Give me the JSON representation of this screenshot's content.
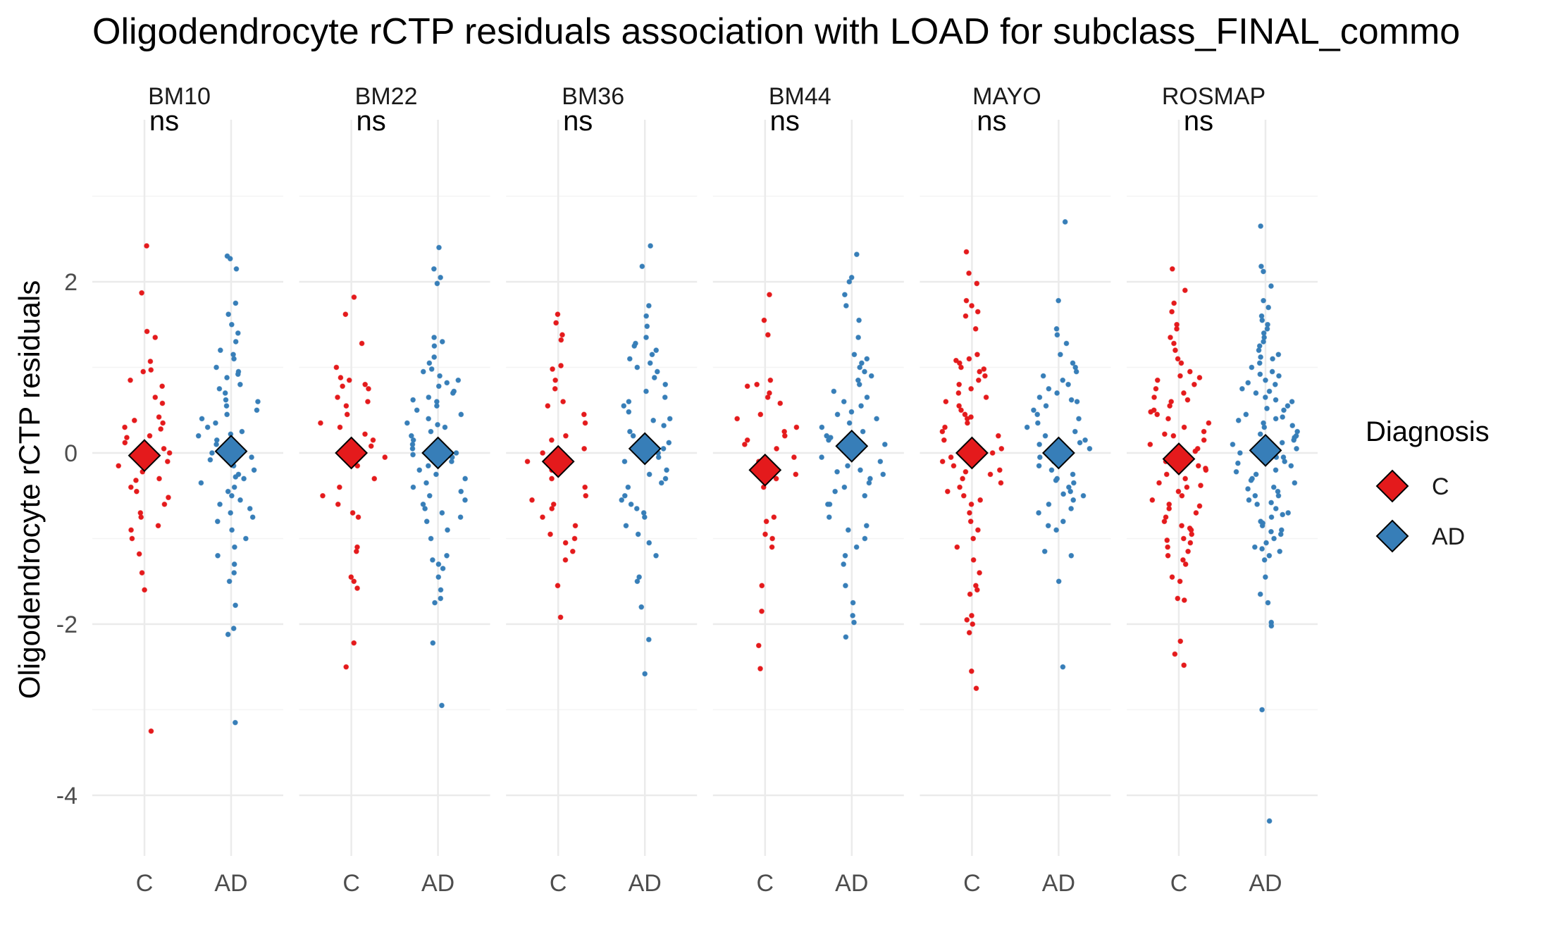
{
  "chart_data": {
    "type": "scatter",
    "title": "Oligodendrocyte rCTP residuals association with LOAD for subclass_FINAL_commo",
    "ylabel": "Oligodendrocyte rCTP residuals",
    "xlabel": "",
    "ylim": [
      -4.7,
      3.9
    ],
    "yticks": [
      -4,
      -2,
      0,
      2
    ],
    "grid": true,
    "categories": [
      "C",
      "AD"
    ],
    "legend": {
      "title": "Diagnosis",
      "position": "right",
      "entries": [
        "C",
        "AD"
      ]
    },
    "colors": {
      "C": "#e41a1c",
      "AD": "#377eb8",
      "grid_major": "#ebebeb",
      "grid_minor": "#f4f4f4"
    },
    "panels": [
      {
        "name": "BM10",
        "significance": "ns",
        "means": {
          "C": -0.03,
          "AD": 0.02
        },
        "points": {
          "C": [
            2.42,
            1.87,
            1.42,
            1.35,
            1.07,
            0.97,
            0.85,
            0.78,
            0.65,
            0.58,
            0.42,
            0.38,
            0.35,
            0.3,
            0.2,
            0.18,
            0.12,
            0.05,
            0.0,
            -0.1,
            -0.15,
            -0.22,
            -0.3,
            -0.32,
            -0.4,
            -0.45,
            -0.52,
            -0.6,
            -0.7,
            -0.75,
            -0.85,
            -0.9,
            -1.0,
            -1.18,
            -1.4,
            -1.6,
            -3.25,
            0.95,
            0.28
          ],
          "AD": [
            2.3,
            2.27,
            2.15,
            1.75,
            1.62,
            1.5,
            1.4,
            1.3,
            1.2,
            1.1,
            1.0,
            0.95,
            0.88,
            0.8,
            0.75,
            0.7,
            0.62,
            0.55,
            0.5,
            0.45,
            0.4,
            0.35,
            0.3,
            0.25,
            0.2,
            0.15,
            0.1,
            0.05,
            0.0,
            -0.05,
            -0.1,
            -0.15,
            -0.2,
            -0.25,
            -0.3,
            -0.35,
            -0.4,
            -0.45,
            -0.5,
            -0.55,
            -0.6,
            -0.7,
            -0.75,
            -0.8,
            -0.9,
            -1.0,
            -1.1,
            -1.2,
            -1.3,
            -1.4,
            -1.5,
            -1.78,
            -2.05,
            -2.12,
            -3.15,
            0.6,
            0.22,
            -0.08,
            -0.28,
            0.92,
            -0.65,
            1.15
          ]
        }
      },
      {
        "name": "BM22",
        "significance": "ns",
        "means": {
          "C": 0.0,
          "AD": 0.0
        },
        "points": {
          "C": [
            1.82,
            1.62,
            1.28,
            1.0,
            0.88,
            0.85,
            0.8,
            0.78,
            0.75,
            0.65,
            0.6,
            0.55,
            0.45,
            0.35,
            0.3,
            0.22,
            0.15,
            0.08,
            -0.05,
            -0.15,
            -0.3,
            -0.4,
            -0.5,
            -0.6,
            -0.7,
            -0.75,
            -1.1,
            -1.15,
            -1.45,
            -1.5,
            -1.58,
            -2.22,
            -2.5
          ],
          "AD": [
            2.4,
            2.15,
            2.05,
            1.98,
            1.35,
            1.3,
            1.25,
            1.12,
            1.05,
            0.98,
            0.95,
            0.9,
            0.85,
            0.82,
            0.78,
            0.72,
            0.7,
            0.65,
            0.6,
            0.55,
            0.5,
            0.45,
            0.4,
            0.35,
            0.3,
            0.25,
            0.2,
            0.15,
            0.1,
            0.05,
            0.0,
            -0.05,
            -0.1,
            -0.15,
            -0.2,
            -0.25,
            -0.3,
            -0.35,
            -0.4,
            -0.45,
            -0.5,
            -0.55,
            -0.6,
            -0.65,
            -0.7,
            -0.75,
            -0.8,
            -0.9,
            -1.0,
            -1.2,
            -1.25,
            -1.3,
            -1.35,
            -1.45,
            -1.6,
            -1.7,
            -1.75,
            -2.22,
            -2.95,
            0.62,
            -0.02,
            0.33
          ]
        }
      },
      {
        "name": "BM36",
        "significance": "ns",
        "means": {
          "C": -0.1,
          "AD": 0.05
        },
        "points": {
          "C": [
            1.62,
            1.52,
            1.38,
            1.32,
            1.02,
            0.98,
            0.85,
            0.75,
            0.6,
            0.55,
            0.45,
            0.35,
            0.2,
            0.15,
            0.05,
            0.0,
            -0.1,
            -0.2,
            -0.3,
            -0.4,
            -0.5,
            -0.55,
            -0.6,
            -0.65,
            -0.75,
            -0.85,
            -0.95,
            -1.0,
            -1.05,
            -1.15,
            -1.25,
            -1.55,
            -1.92
          ],
          "AD": [
            2.42,
            2.18,
            1.72,
            1.6,
            1.48,
            1.35,
            1.25,
            1.2,
            1.15,
            1.1,
            1.05,
            1.0,
            0.95,
            0.88,
            0.8,
            0.72,
            0.65,
            0.6,
            0.55,
            0.48,
            0.4,
            0.32,
            0.25,
            0.2,
            0.12,
            0.05,
            0.0,
            -0.05,
            -0.1,
            -0.2,
            -0.3,
            -0.35,
            -0.4,
            -0.5,
            -0.55,
            -0.6,
            -0.65,
            -0.7,
            -0.75,
            -0.85,
            -0.95,
            -1.05,
            -1.2,
            -1.45,
            -1.5,
            -1.8,
            -2.18,
            -2.58,
            0.38,
            -0.25,
            1.28
          ]
        }
      },
      {
        "name": "BM44",
        "significance": "ns",
        "means": {
          "C": -0.2,
          "AD": 0.08
        },
        "points": {
          "C": [
            1.85,
            1.55,
            1.38,
            0.85,
            0.8,
            0.78,
            0.7,
            0.65,
            0.58,
            0.45,
            0.4,
            0.3,
            0.25,
            0.2,
            0.15,
            0.1,
            0.05,
            -0.05,
            -0.1,
            -0.2,
            -0.25,
            -0.3,
            -0.4,
            -0.75,
            -0.8,
            -0.95,
            -1.0,
            -1.1,
            -1.55,
            -1.85,
            -2.25,
            -2.52
          ],
          "AD": [
            2.32,
            2.05,
            2.0,
            1.85,
            1.72,
            1.55,
            1.35,
            1.15,
            1.1,
            1.05,
            1.0,
            0.95,
            0.9,
            0.85,
            0.8,
            0.72,
            0.65,
            0.6,
            0.55,
            0.48,
            0.4,
            0.35,
            0.3,
            0.25,
            0.2,
            0.15,
            0.1,
            0.05,
            0.0,
            -0.05,
            -0.1,
            -0.15,
            -0.2,
            -0.25,
            -0.3,
            -0.35,
            -0.4,
            -0.45,
            -0.5,
            -0.6,
            -0.75,
            -0.85,
            -0.9,
            -1.0,
            -1.1,
            -1.2,
            -1.3,
            -1.55,
            -1.75,
            -1.9,
            -1.98,
            -2.15,
            -0.22,
            0.45,
            -0.6,
            0.18
          ]
        }
      },
      {
        "name": "MAYO",
        "significance": "ns",
        "means": {
          "C": 0.0,
          "AD": 0.0
        },
        "points": {
          "C": [
            2.35,
            2.1,
            1.98,
            1.78,
            1.72,
            1.65,
            1.6,
            1.45,
            1.15,
            1.1,
            1.08,
            1.05,
            1.0,
            0.95,
            0.9,
            0.85,
            0.8,
            0.75,
            0.7,
            0.65,
            0.6,
            0.55,
            0.5,
            0.45,
            0.4,
            0.35,
            0.3,
            0.25,
            0.2,
            0.15,
            0.1,
            0.05,
            0.0,
            -0.05,
            -0.1,
            -0.15,
            -0.2,
            -0.25,
            -0.3,
            -0.35,
            -0.4,
            -0.45,
            -0.5,
            -0.55,
            -0.6,
            -0.7,
            -0.8,
            -0.9,
            -1.0,
            -1.1,
            -1.25,
            -1.4,
            -1.55,
            -1.6,
            -1.65,
            -1.9,
            -1.95,
            -2.0,
            -2.1,
            -2.55,
            -2.75,
            0.42,
            -0.22,
            0.98
          ],
          "AD": [
            2.7,
            1.78,
            1.45,
            1.38,
            1.28,
            1.15,
            1.05,
            1.0,
            0.95,
            0.9,
            0.85,
            0.8,
            0.75,
            0.7,
            0.65,
            0.6,
            0.55,
            0.5,
            0.45,
            0.4,
            0.35,
            0.3,
            0.25,
            0.2,
            0.15,
            0.1,
            0.05,
            0.0,
            -0.05,
            -0.1,
            -0.15,
            -0.2,
            -0.25,
            -0.3,
            -0.35,
            -0.4,
            -0.45,
            -0.5,
            -0.55,
            -0.6,
            -0.65,
            -0.7,
            -0.8,
            -0.85,
            -0.9,
            -1.15,
            -1.2,
            -1.5,
            -2.5,
            0.12,
            -0.32,
            0.62,
            -0.48
          ]
        }
      },
      {
        "name": "ROSMAP",
        "significance": "ns",
        "means": {
          "C": -0.07,
          "AD": 0.03
        },
        "points": {
          "C": [
            2.15,
            1.9,
            1.75,
            1.65,
            1.5,
            1.45,
            1.35,
            1.2,
            1.1,
            1.05,
            0.95,
            0.9,
            0.85,
            0.8,
            0.75,
            0.7,
            0.65,
            0.6,
            0.55,
            0.5,
            0.45,
            0.4,
            0.35,
            0.3,
            0.25,
            0.2,
            0.15,
            0.1,
            0.05,
            0.0,
            -0.05,
            -0.1,
            -0.15,
            -0.2,
            -0.25,
            -0.3,
            -0.35,
            -0.4,
            -0.45,
            -0.5,
            -0.55,
            -0.6,
            -0.65,
            -0.7,
            -0.75,
            -0.8,
            -0.85,
            -0.9,
            -0.95,
            -1.0,
            -1.05,
            -1.1,
            -1.15,
            -1.2,
            -1.25,
            -1.3,
            -1.45,
            -1.5,
            -1.7,
            -1.72,
            -2.2,
            -2.35,
            -2.48,
            0.22,
            -0.18,
            0.62,
            -0.38,
            0.02,
            0.48,
            -0.62,
            0.88,
            -0.88,
            1.28,
            -1.02
          ],
          "AD": [
            2.65,
            2.18,
            2.12,
            1.95,
            1.78,
            1.7,
            1.6,
            1.55,
            1.5,
            1.45,
            1.4,
            1.35,
            1.3,
            1.25,
            1.2,
            1.15,
            1.1,
            1.05,
            1.0,
            0.95,
            0.9,
            0.85,
            0.8,
            0.75,
            0.7,
            0.65,
            0.6,
            0.55,
            0.5,
            0.45,
            0.4,
            0.35,
            0.3,
            0.25,
            0.2,
            0.15,
            0.1,
            0.05,
            0.0,
            -0.05,
            -0.1,
            -0.15,
            -0.2,
            -0.25,
            -0.3,
            -0.35,
            -0.4,
            -0.45,
            -0.5,
            -0.55,
            -0.6,
            -0.65,
            -0.7,
            -0.75,
            -0.8,
            -0.85,
            -0.9,
            -0.95,
            -1.0,
            -1.05,
            -1.1,
            -1.15,
            -1.2,
            -1.25,
            -1.45,
            -1.65,
            -1.75,
            -1.98,
            -2.02,
            -3.0,
            -4.3,
            0.12,
            0.38,
            -0.32,
            0.72,
            -0.58,
            0.22,
            -0.12,
            0.52,
            -0.82,
            0.92,
            -0.42,
            0.02,
            0.32,
            -0.22,
            0.62,
            -0.72,
            0.82,
            -0.92,
            0.18,
            -0.05,
            0.42,
            -0.5,
            1.12,
            -1.12
          ]
        }
      }
    ]
  }
}
